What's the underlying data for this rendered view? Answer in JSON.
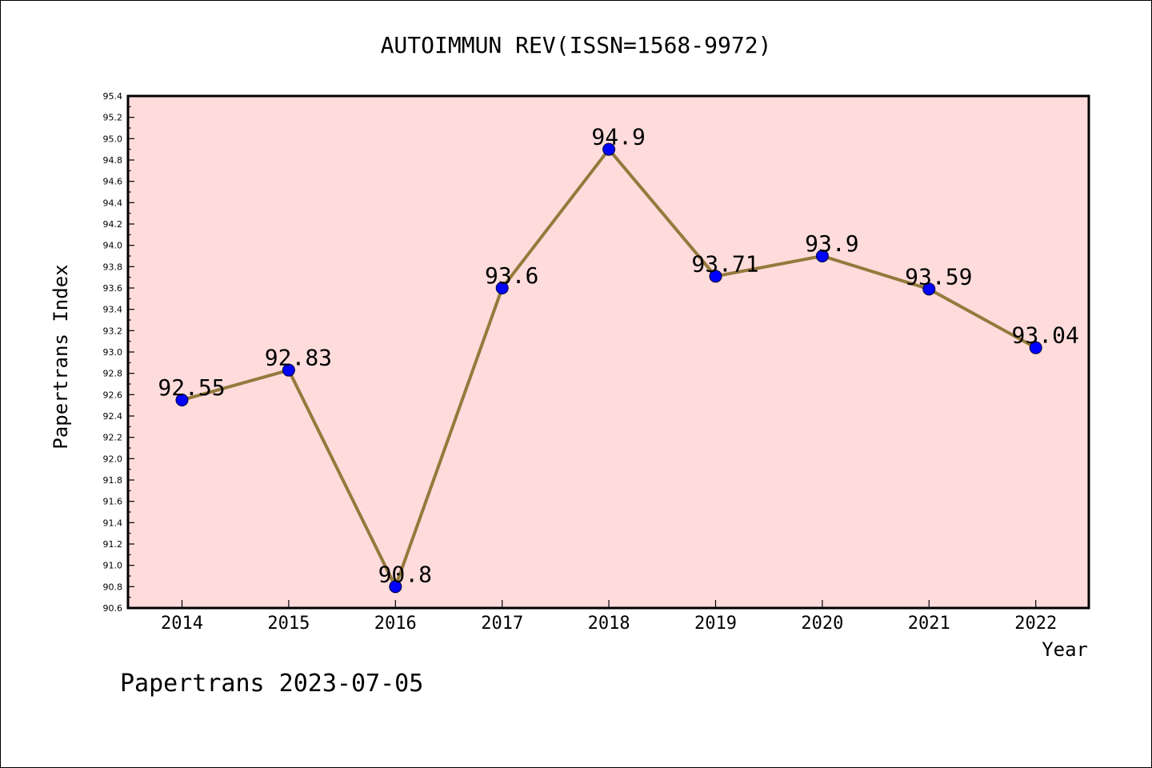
{
  "chart_data": {
    "type": "line",
    "title": "AUTOIMMUN REV(ISSN=1568-9972)",
    "xlabel": "Year",
    "ylabel": "Papertrans Index",
    "categories": [
      "2014",
      "2015",
      "2016",
      "2017",
      "2018",
      "2019",
      "2020",
      "2021",
      "2022"
    ],
    "values": [
      92.55,
      92.83,
      90.8,
      93.6,
      94.9,
      93.71,
      93.9,
      93.59,
      93.04
    ],
    "data_labels": [
      "92.55",
      "92.83",
      "90.8",
      "93.6",
      "94.9",
      "93.71",
      "93.9",
      "93.59",
      "93.04"
    ],
    "ylim": [
      90.6,
      95.4
    ],
    "yticks": [
      "90.6",
      "90.8",
      "91.0",
      "91.2",
      "91.4",
      "91.6",
      "91.8",
      "92.0",
      "92.2",
      "92.4",
      "92.6",
      "92.8",
      "93.0",
      "93.2",
      "93.4",
      "93.6",
      "93.8",
      "94.0",
      "94.2",
      "94.4",
      "94.6",
      "94.8",
      "95.0",
      "95.2",
      "95.4"
    ],
    "grid": false,
    "line_color": "#947a3c",
    "marker_color": "#0000ff",
    "plot_background": "#ffdcdc"
  },
  "footer": {
    "watermark": "Papertrans 2023-07-05"
  }
}
